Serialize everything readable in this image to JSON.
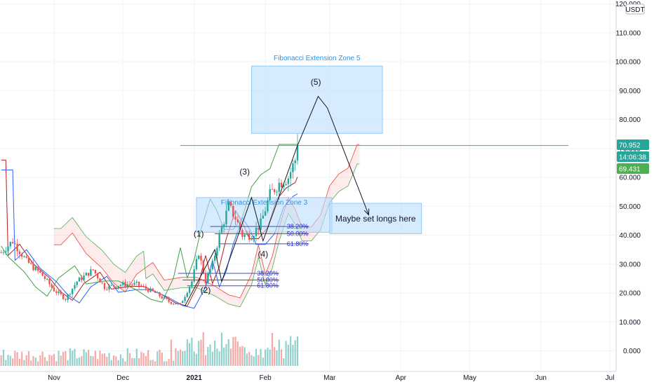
{
  "chart_data": {
    "type": "candlestick",
    "currency": "USDT",
    "price_axis": {
      "ticks": [
        "120.000",
        "110.000",
        "100.000",
        "90.000",
        "80.000",
        "70.000",
        "60.000",
        "50.000",
        "40.000",
        "30.000",
        "20.000",
        "10.000",
        "0.000"
      ],
      "values": [
        120,
        110,
        100,
        90,
        80,
        70,
        60,
        50,
        40,
        30,
        20,
        10,
        0
      ],
      "ylim": [
        -6,
        121
      ]
    },
    "time_axis": {
      "labels": [
        "Nov",
        "Dec",
        "2021",
        "Feb",
        "Mar",
        "Apr",
        "May",
        "Jun",
        "Jul"
      ],
      "label_days": [
        0,
        30,
        61,
        92,
        120,
        151,
        181,
        212,
        242
      ],
      "bold_label": "2021"
    },
    "price_tags": [
      {
        "label": "70.952",
        "value": 70.952,
        "color": "#26a69a",
        "kind": "last"
      },
      {
        "label": "14:06:38",
        "value": 69.3,
        "color": "#26a69a",
        "kind": "countdown"
      },
      {
        "label": "69.431",
        "value": 66.5,
        "color": "#4caf50",
        "kind": "indicator"
      }
    ],
    "zones": [
      {
        "label": "Fibonacci Extension Zone 5",
        "day_start": 86,
        "day_end": 143,
        "high": 98.5,
        "low": 75.2
      },
      {
        "label": "Fibonacci Extension Zone 3",
        "day_start": 62,
        "day_end": 121,
        "high": 53,
        "low": 41
      },
      {
        "label": "Maybe set longs here",
        "day_start": 120,
        "day_end": 160,
        "high": 51,
        "low": 40.5
      }
    ],
    "wave_labels": [
      {
        "label": "(1)",
        "day": 63,
        "price": 39.5
      },
      {
        "label": "(2)",
        "day": 66,
        "price": 20
      },
      {
        "label": "(3)",
        "day": 83,
        "price": 61
      },
      {
        "label": "(4)",
        "day": 91,
        "price": 32.5
      },
      {
        "label": "(5)",
        "day": 114,
        "price": 92
      }
    ],
    "fib_levels": [
      {
        "label": "38.20%",
        "price": 43,
        "day_start": 68,
        "day_end": 111
      },
      {
        "label": "50.00%",
        "price": 40.5,
        "day_start": 70,
        "day_end": 111
      },
      {
        "label": "61.80%",
        "price": 37,
        "day_start": 72,
        "day_end": 111
      },
      {
        "label": "38.20%",
        "price": 26.8,
        "day_start": 54,
        "day_end": 98
      },
      {
        "label": "50.00%",
        "price": 24.5,
        "day_start": 56,
        "day_end": 98
      },
      {
        "label": "61.80%",
        "price": 22.5,
        "day_start": 58,
        "day_end": 98
      }
    ],
    "wave_path": [
      [
        57,
        15.5
      ],
      [
        70,
        35
      ],
      [
        73,
        24
      ],
      [
        86,
        53
      ],
      [
        91,
        38
      ],
      [
        106,
        71
      ],
      [
        115,
        88
      ],
      [
        119,
        84
      ],
      [
        137,
        47
      ]
    ],
    "horizontal_line": {
      "price": 71,
      "day_start": 55,
      "day_end": 224
    },
    "last_price": 70.952,
    "grid": true
  }
}
